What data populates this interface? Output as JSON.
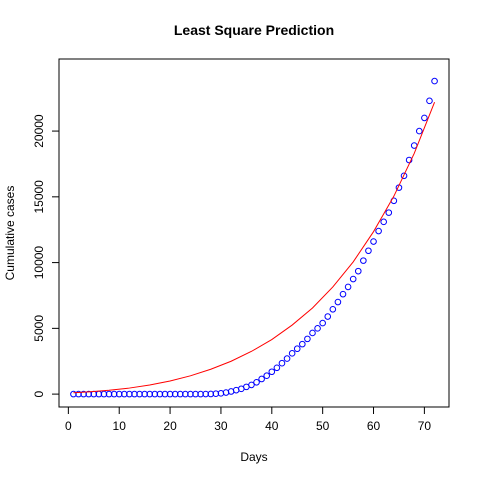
{
  "chart_data": {
    "type": "scatter",
    "title": "Least Square Prediction",
    "xlabel": "Days",
    "ylabel": "Cumulative cases",
    "xlim": [
      1,
      72
    ],
    "ylim": [
      0,
      24500
    ],
    "xticks": [
      0,
      10,
      20,
      30,
      40,
      50,
      60,
      70
    ],
    "yticks": [
      0,
      5000,
      10000,
      15000,
      20000
    ],
    "grid": false,
    "legend": "none",
    "series": [
      {
        "kind": "points",
        "marker": "open-circle",
        "color": "#0000ff",
        "x": [
          1,
          2,
          3,
          4,
          5,
          6,
          7,
          8,
          9,
          10,
          11,
          12,
          13,
          14,
          15,
          16,
          17,
          18,
          19,
          20,
          21,
          22,
          23,
          24,
          25,
          26,
          27,
          28,
          29,
          30,
          31,
          32,
          33,
          34,
          35,
          36,
          37,
          38,
          39,
          40,
          41,
          42,
          43,
          44,
          45,
          46,
          47,
          48,
          49,
          50,
          51,
          52,
          53,
          54,
          55,
          56,
          57,
          58,
          59,
          60,
          61,
          62,
          63,
          64,
          65,
          66,
          67,
          68,
          69,
          70,
          71,
          72
        ],
        "y": [
          0,
          0,
          0,
          0,
          0,
          0,
          0,
          0,
          0,
          0,
          0,
          0,
          0,
          0,
          0,
          0,
          0,
          0,
          0,
          0,
          0,
          0,
          0,
          0,
          0,
          0,
          5,
          10,
          30,
          60,
          120,
          200,
          300,
          400,
          550,
          700,
          900,
          1150,
          1400,
          1700,
          2000,
          2350,
          2700,
          3100,
          3450,
          3800,
          4200,
          4650,
          5000,
          5400,
          5900,
          6450,
          7000,
          7600,
          8150,
          8750,
          9350,
          10150,
          10900,
          11600,
          12400,
          13100,
          13800,
          14700,
          15700,
          16600,
          17800,
          18900,
          20000,
          21000,
          22300,
          23800
        ]
      },
      {
        "kind": "line",
        "color": "#ff0000",
        "x": [
          1,
          4,
          8,
          12,
          16,
          20,
          24,
          28,
          32,
          36,
          40,
          44,
          48,
          52,
          56,
          60,
          64,
          68,
          72
        ],
        "y": [
          100,
          170,
          290,
          460,
          690,
          1000,
          1390,
          1890,
          2500,
          3250,
          4150,
          5250,
          6550,
          8150,
          10050,
          12350,
          15050,
          18300,
          22200
        ]
      }
    ]
  }
}
